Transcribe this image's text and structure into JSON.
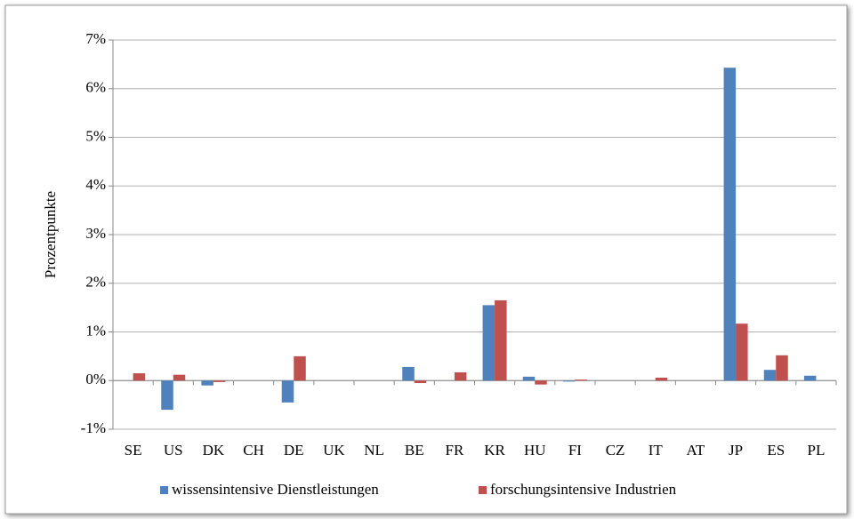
{
  "chart_data": {
    "type": "bar",
    "y_label": "Prozentpunkte",
    "categories": [
      "SE",
      "US",
      "DK",
      "CH",
      "DE",
      "UK",
      "NL",
      "BE",
      "FR",
      "KR",
      "HU",
      "FI",
      "CZ",
      "IT",
      "AT",
      "JP",
      "ES",
      "PL"
    ],
    "series": [
      {
        "name": "wissensintensive Dienstleistungen",
        "color": "#4f81bd",
        "values": [
          0,
          -0.6,
          -0.1,
          0,
          -0.45,
          0,
          0,
          0.28,
          0,
          1.55,
          0.08,
          -0.02,
          0,
          0,
          0,
          6.43,
          0.22,
          0.1
        ]
      },
      {
        "name": "forschungsintensive Industrien",
        "color": "#c0504d",
        "values": [
          0.15,
          0.12,
          -0.03,
          0,
          0.5,
          0,
          0,
          -0.05,
          0.17,
          1.65,
          -0.08,
          0.02,
          0,
          0.06,
          0,
          1.17,
          0.52,
          0
        ]
      }
    ],
    "ylim": [
      -1,
      7
    ],
    "yticks": [
      {
        "value": -1,
        "label": "-1%"
      },
      {
        "value": 0,
        "label": "0%"
      },
      {
        "value": 1,
        "label": "1%"
      },
      {
        "value": 2,
        "label": "2%"
      },
      {
        "value": 3,
        "label": "3%"
      },
      {
        "value": 4,
        "label": "4%"
      },
      {
        "value": 5,
        "label": "5%"
      },
      {
        "value": 6,
        "label": "6%"
      },
      {
        "value": 7,
        "label": "7%"
      }
    ],
    "grid": true,
    "legend": "bottom"
  }
}
